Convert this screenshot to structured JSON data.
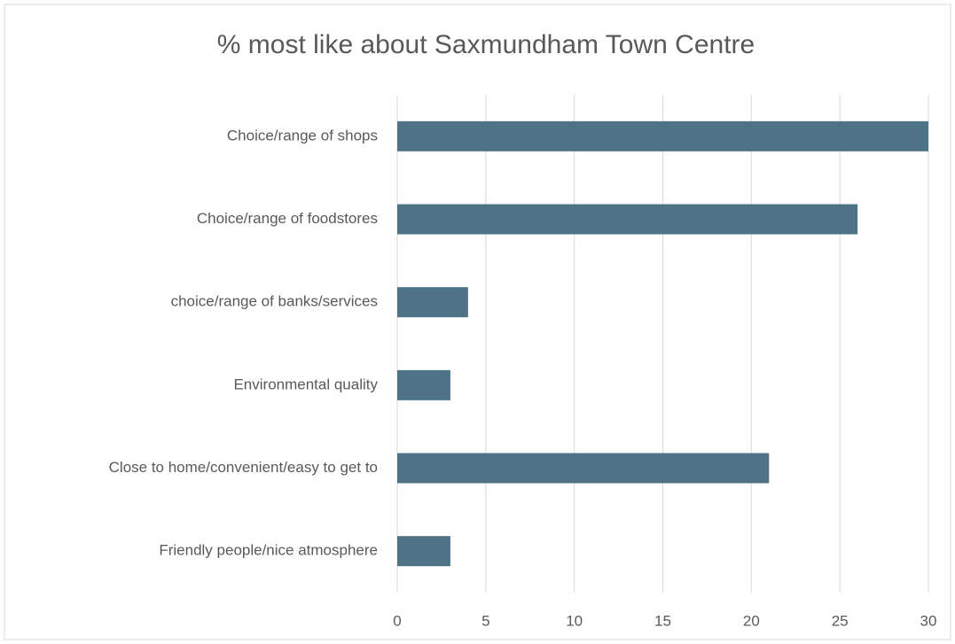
{
  "chart_data": {
    "type": "bar",
    "orientation": "horizontal",
    "title": "% most like about Saxmundham Town Centre",
    "categories": [
      "Choice/range of shops",
      "Choice/range of foodstores",
      "choice/range of banks/services",
      "Environmental quality",
      "Close to home/convenient/easy to get to",
      "Friendly people/nice atmosphere"
    ],
    "values": [
      30,
      26,
      4,
      3,
      21,
      3
    ],
    "color": "#4e7387",
    "xlim": [
      0,
      30
    ],
    "xticks": [
      0,
      5,
      10,
      15,
      20,
      25,
      30
    ],
    "grid": true
  }
}
